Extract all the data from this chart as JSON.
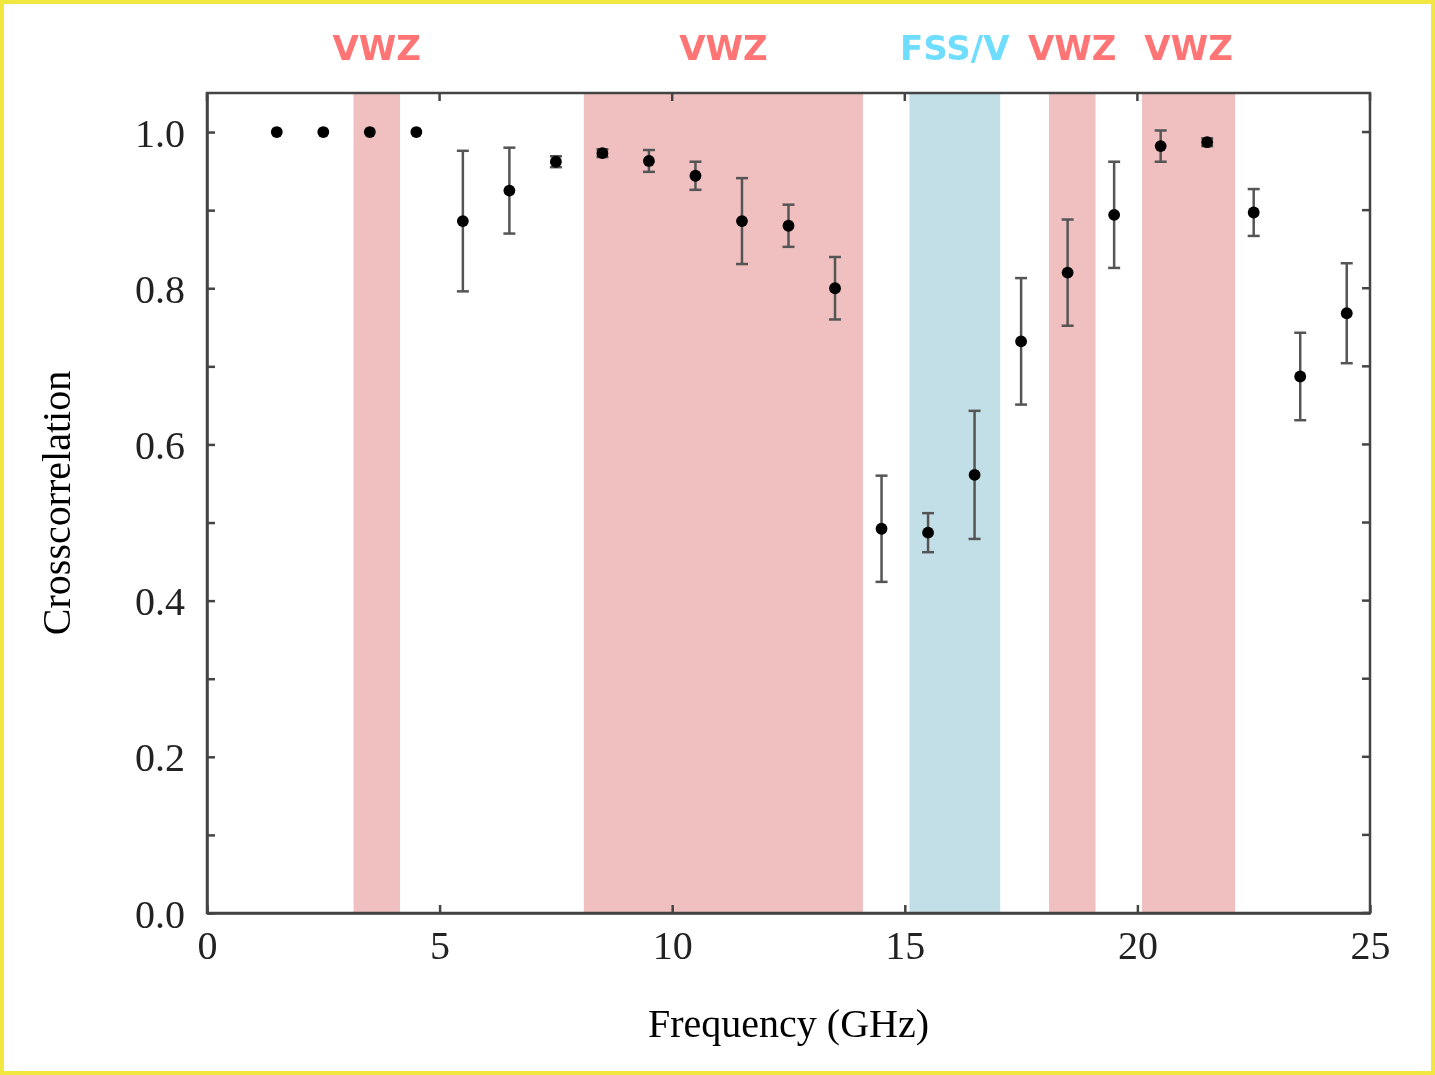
{
  "chart_data": {
    "type": "scatter",
    "xlabel": "Frequency (GHz)",
    "ylabel": "Crosscorrelation",
    "x": [
      1.5,
      2.5,
      3.5,
      4.5,
      5.5,
      6.5,
      7.5,
      8.5,
      9.5,
      10.5,
      11.5,
      12.5,
      13.5,
      14.5,
      15.5,
      16.5,
      17.5,
      18.5,
      19.5,
      20.5,
      21.5,
      22.5,
      23.5,
      24.5
    ],
    "values": [
      1.0,
      1.0,
      1.0,
      1.0,
      0.886,
      0.925,
      0.962,
      0.973,
      0.963,
      0.944,
      0.886,
      0.88,
      0.8,
      0.492,
      0.487,
      0.561,
      0.732,
      0.82,
      0.894,
      0.982,
      0.987,
      0.897,
      0.687,
      0.768
    ],
    "errors": [
      null,
      null,
      null,
      null,
      0.09,
      0.055,
      0.007,
      0.005,
      0.014,
      0.018,
      0.055,
      0.027,
      0.04,
      0.068,
      0.025,
      0.082,
      0.081,
      0.068,
      0.068,
      0.02,
      0.005,
      0.03,
      0.056,
      0.064
    ],
    "color": "#000000",
    "marker": "circle",
    "xlim": [
      0,
      25
    ],
    "xticks": [
      0,
      5,
      10,
      15,
      20,
      25
    ],
    "ylim": [
      0,
      1.05
    ],
    "yticks": [
      {
        "value": 0,
        "label": "0.0"
      },
      {
        "value": 0.1,
        "label": null
      },
      0.2,
      {
        "value": 0.3,
        "label": null
      },
      0.4,
      {
        "value": 0.5,
        "label": null
      },
      0.6,
      {
        "value": 0.7,
        "label": null
      },
      0.8,
      {
        "value": 0.9,
        "label": null
      },
      {
        "value": 1,
        "label": "1.0"
      }
    ],
    "bands": [
      {
        "axis": "x",
        "from": 3.15,
        "to": 4.15,
        "label": "VWZ",
        "color": "#f0c0c0"
      },
      {
        "axis": "x",
        "from": 8.1,
        "to": 14.1,
        "label": "VWZ",
        "color": "#f0c0c0"
      },
      {
        "axis": "x",
        "from": 15.1,
        "to": 17.05,
        "label": "FSS/V",
        "color": "#c2dfe8"
      },
      {
        "axis": "x",
        "from": 18.1,
        "to": 19.1,
        "label": "VWZ",
        "color": "#f0c0c0"
      },
      {
        "axis": "x",
        "from": 20.1,
        "to": 22.1,
        "label": "VWZ",
        "color": "#f0c0c0"
      }
    ],
    "grid": false,
    "legend": false
  }
}
